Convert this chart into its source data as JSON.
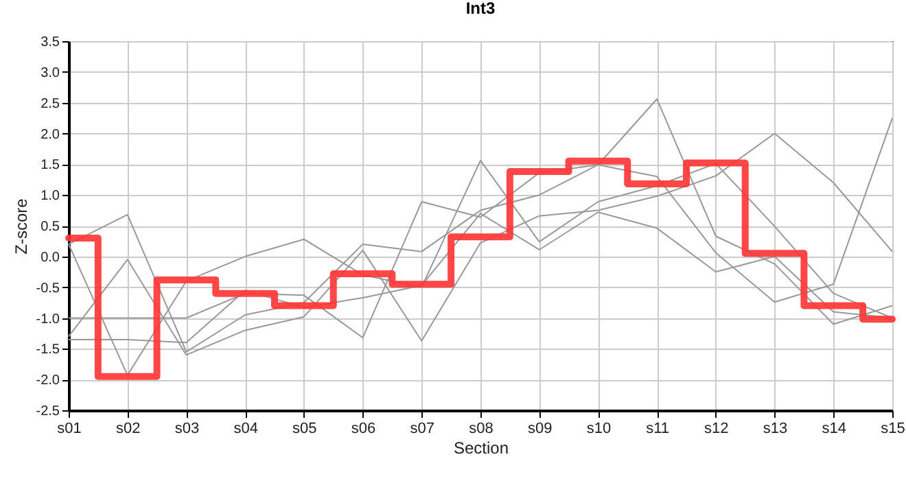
{
  "chart_data": {
    "type": "line",
    "title": "Int3",
    "xlabel": "Section",
    "ylabel": "Z-score",
    "categories": [
      "s01",
      "s02",
      "s03",
      "s04",
      "s05",
      "s06",
      "s07",
      "s08",
      "s09",
      "s10",
      "s11",
      "s12",
      "s13",
      "s14",
      "s15"
    ],
    "ylim": [
      -2.5,
      3.5
    ],
    "yticks": [
      -2.5,
      {
        "value": -2,
        "label": "-2.0"
      },
      -1.5,
      {
        "value": -1,
        "label": "-1.0"
      },
      -0.5,
      {
        "value": 0,
        "label": "0.0"
      },
      0.5,
      {
        "value": 1,
        "label": "1.0"
      },
      1.5,
      {
        "value": 2,
        "label": "2.0"
      },
      2.5,
      {
        "value": 3,
        "label": "3.0"
      },
      3.5
    ],
    "grid": true,
    "marker": "none",
    "series": [
      {
        "color": "#999999",
        "values": [
          0.2,
          0.68,
          -1.55,
          -0.95,
          -0.75,
          0.2,
          0.08,
          0.75,
          1.0,
          1.49,
          2.56,
          0.33,
          -0.12,
          -1.1,
          -0.8
        ]
      },
      {
        "color": "#999999",
        "values": [
          0.2,
          -1.93,
          -0.4,
          0.0,
          0.28,
          -0.3,
          -0.5,
          1.56,
          0.24,
          0.89,
          1.15,
          1.51,
          0.49,
          -0.6,
          -1.0
        ]
      },
      {
        "color": "#999999",
        "values": [
          -1.0,
          -1.0,
          -1.0,
          -0.6,
          -0.63,
          -1.32,
          0.89,
          0.64,
          1.36,
          1.49,
          1.3,
          0.06,
          -0.74,
          -0.45,
          2.25
        ]
      },
      {
        "color": "#999999",
        "values": [
          -1.3,
          -0.05,
          -1.6,
          -1.2,
          -0.98,
          0.1,
          -1.37,
          0.22,
          0.66,
          0.75,
          0.98,
          1.31,
          2.0,
          1.2,
          0.08
        ]
      },
      {
        "color": "#999999",
        "values": [
          -1.35,
          -1.35,
          -1.4,
          -0.55,
          -0.83,
          -0.67,
          -0.47,
          0.7,
          0.11,
          0.72,
          0.46,
          -0.25,
          0.0,
          -0.9,
          -1.0
        ]
      },
      {
        "type": "step",
        "color": "#ff3333",
        "values": [
          0.3,
          -1.95,
          -0.38,
          -0.6,
          -0.8,
          -0.28,
          -0.45,
          0.32,
          1.38,
          1.55,
          1.18,
          1.52,
          0.05,
          -0.8,
          -1.02
        ]
      }
    ]
  }
}
